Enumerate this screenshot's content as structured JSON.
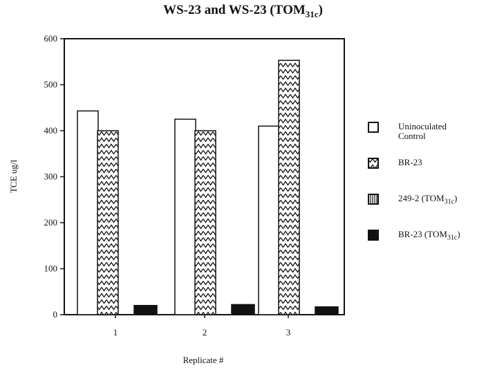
{
  "chart_data": {
    "type": "bar",
    "title": "WS-23 and WS-23 (TOM",
    "title_sub": "31c",
    "title_close": ")",
    "xlabel": "Replicate #",
    "ylabel": "TCE ug/l",
    "ylim": [
      0,
      600
    ],
    "yticks": [
      0,
      100,
      200,
      300,
      400,
      500,
      600
    ],
    "categories": [
      "1",
      "2",
      "3"
    ],
    "series": [
      {
        "name": "Uninoculated Control",
        "pattern": "blank",
        "values": [
          443,
          425,
          410
        ]
      },
      {
        "name": "BR-23",
        "pattern": "zigzag",
        "values": [
          400,
          400,
          553
        ]
      },
      {
        "name": "249-2 (TOM31c)",
        "pattern": "vertical-lines",
        "values": [
          0,
          0,
          0
        ]
      },
      {
        "name": "BR-23 (TOM31c)",
        "pattern": "solid",
        "values": [
          20,
          22,
          17
        ]
      }
    ],
    "legend_position": "right"
  },
  "legend": [
    {
      "label": "Uninoculated",
      "label2": "Control",
      "sub": "",
      "close": ""
    },
    {
      "label": "BR-23",
      "label2": "",
      "sub": "",
      "close": ""
    },
    {
      "label": "249-2 (TOM",
      "label2": "",
      "sub": "31c",
      "close": ")"
    },
    {
      "label": "BR-23 (TOM",
      "label2": "",
      "sub": "31c",
      "close": ")"
    }
  ]
}
